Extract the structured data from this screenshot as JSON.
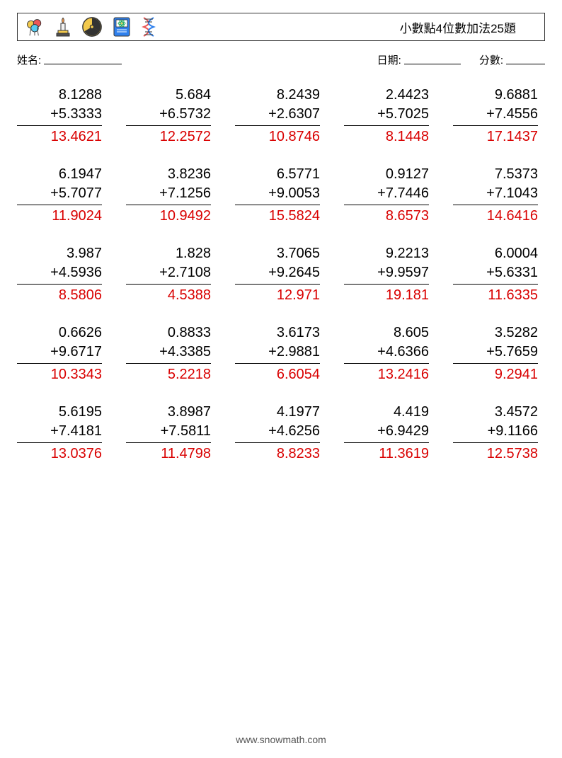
{
  "header": {
    "title": "小數點4位數加法25題",
    "icons": [
      "balloons-icon",
      "candle-icon",
      "radiation-icon",
      "science-book-icon",
      "dna-icon"
    ]
  },
  "info": {
    "name_label": "姓名:",
    "date_label": "日期:",
    "score_label": "分數:",
    "name_blank_width": 110,
    "date_blank_width": 80,
    "score_blank_width": 55
  },
  "style": {
    "problem_fontsize": 20,
    "answer_color": "#d90000",
    "text_color": "#000000",
    "border_color": "#000000",
    "background": "#ffffff",
    "columns": 5,
    "rows": 5
  },
  "problems": [
    {
      "a": "8.1288",
      "b": "5.3333",
      "ans": "13.4621"
    },
    {
      "a": "5.684",
      "b": "6.5732",
      "ans": "12.2572"
    },
    {
      "a": "8.2439",
      "b": "2.6307",
      "ans": "10.8746"
    },
    {
      "a": "2.4423",
      "b": "5.7025",
      "ans": "8.1448"
    },
    {
      "a": "9.6881",
      "b": "7.4556",
      "ans": "17.1437"
    },
    {
      "a": "6.1947",
      "b": "5.7077",
      "ans": "11.9024"
    },
    {
      "a": "3.8236",
      "b": "7.1256",
      "ans": "10.9492"
    },
    {
      "a": "6.5771",
      "b": "9.0053",
      "ans": "15.5824"
    },
    {
      "a": "0.9127",
      "b": "7.7446",
      "ans": "8.6573"
    },
    {
      "a": "7.5373",
      "b": "7.1043",
      "ans": "14.6416"
    },
    {
      "a": "3.987",
      "b": "4.5936",
      "ans": "8.5806"
    },
    {
      "a": "1.828",
      "b": "2.7108",
      "ans": "4.5388"
    },
    {
      "a": "3.7065",
      "b": "9.2645",
      "ans": "12.971"
    },
    {
      "a": "9.2213",
      "b": "9.9597",
      "ans": "19.181"
    },
    {
      "a": "6.0004",
      "b": "5.6331",
      "ans": "11.6335"
    },
    {
      "a": "0.6626",
      "b": "9.6717",
      "ans": "10.3343"
    },
    {
      "a": "0.8833",
      "b": "4.3385",
      "ans": "5.2218"
    },
    {
      "a": "3.6173",
      "b": "2.9881",
      "ans": "6.6054"
    },
    {
      "a": "8.605",
      "b": "4.6366",
      "ans": "13.2416"
    },
    {
      "a": "3.5282",
      "b": "5.7659",
      "ans": "9.2941"
    },
    {
      "a": "5.6195",
      "b": "7.4181",
      "ans": "13.0376"
    },
    {
      "a": "3.8987",
      "b": "7.5811",
      "ans": "11.4798"
    },
    {
      "a": "4.1977",
      "b": "4.6256",
      "ans": "8.8233"
    },
    {
      "a": "4.419",
      "b": "6.9429",
      "ans": "11.3619"
    },
    {
      "a": "3.4572",
      "b": "9.1166",
      "ans": "12.5738"
    }
  ],
  "operator": "+",
  "footer": "www.snowmath.com"
}
